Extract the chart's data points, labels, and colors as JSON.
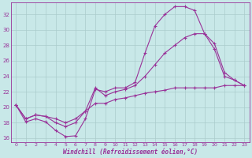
{
  "xlabel": "Windchill (Refroidissement éolien,°C)",
  "bg_color": "#c8e8e8",
  "line_color": "#993399",
  "xlim": [
    -0.5,
    23.5
  ],
  "ylim": [
    15.5,
    33.5
  ],
  "xticks": [
    0,
    1,
    2,
    3,
    4,
    5,
    6,
    7,
    8,
    9,
    10,
    11,
    12,
    13,
    14,
    15,
    16,
    17,
    18,
    19,
    20,
    21,
    22,
    23
  ],
  "yticks": [
    16,
    18,
    20,
    22,
    24,
    26,
    28,
    30,
    32
  ],
  "grid_color": "#aacccc",
  "curve1_x": [
    0,
    1,
    2,
    3,
    4,
    5,
    6,
    7,
    8,
    9,
    10,
    11,
    12,
    13,
    14,
    15,
    16,
    17,
    18,
    19,
    20,
    21,
    22,
    23
  ],
  "curve1_y": [
    20.3,
    18.1,
    18.5,
    18.1,
    17.0,
    16.2,
    16.3,
    18.5,
    22.3,
    22.0,
    22.5,
    22.5,
    23.2,
    27.0,
    30.5,
    32.0,
    33.0,
    33.0,
    32.5,
    29.5,
    27.5,
    24.0,
    23.5,
    22.8
  ],
  "curve2_x": [
    0,
    1,
    2,
    3,
    4,
    5,
    6,
    7,
    8,
    9,
    10,
    11,
    12,
    13,
    14,
    15,
    16,
    17,
    18,
    19,
    20,
    21,
    22,
    23
  ],
  "curve2_y": [
    20.3,
    18.5,
    19.0,
    18.8,
    18.0,
    17.5,
    18.0,
    19.5,
    22.5,
    21.5,
    22.0,
    22.3,
    22.8,
    24.0,
    25.5,
    27.0,
    28.0,
    29.0,
    29.5,
    29.5,
    28.2,
    24.5,
    23.5,
    22.8
  ],
  "curve3_x": [
    0,
    1,
    2,
    3,
    4,
    5,
    6,
    7,
    8,
    9,
    10,
    11,
    12,
    13,
    14,
    15,
    16,
    17,
    18,
    19,
    20,
    21,
    22,
    23
  ],
  "curve3_y": [
    20.3,
    18.5,
    19.0,
    18.8,
    18.5,
    18.0,
    18.5,
    19.5,
    20.5,
    20.5,
    21.0,
    21.2,
    21.5,
    21.8,
    22.0,
    22.2,
    22.5,
    22.5,
    22.5,
    22.5,
    22.5,
    22.8,
    22.8,
    22.8
  ]
}
